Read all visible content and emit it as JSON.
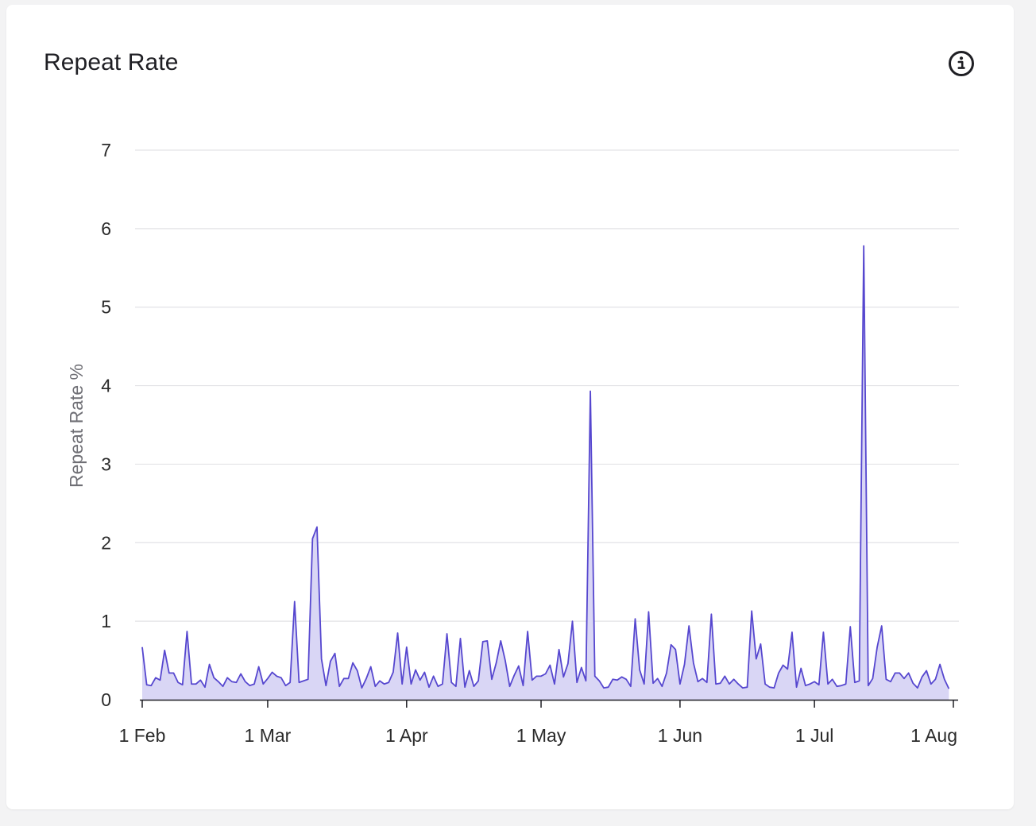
{
  "title": "Repeat Rate",
  "info_icon": "info-circle-icon",
  "chart_data": {
    "type": "area",
    "ylabel": "Repeat Rate %",
    "xlabel": "",
    "ylim": [
      0,
      7
    ],
    "y_ticks": [
      0,
      1,
      2,
      3,
      4,
      5,
      6,
      7
    ],
    "x_ticks": [
      {
        "date": "2023-02-01",
        "label": "1 Feb"
      },
      {
        "date": "2023-03-01",
        "label": "1 Mar"
      },
      {
        "date": "2023-04-01",
        "label": "1 Apr"
      },
      {
        "date": "2023-05-01",
        "label": "1 May"
      },
      {
        "date": "2023-06-01",
        "label": "1 Jun"
      },
      {
        "date": "2023-07-01",
        "label": "1 Jul"
      },
      {
        "date": "2023-08-01",
        "label": "1 Aug"
      }
    ],
    "x_start": "2023-02-01",
    "x_end": "2023-07-31",
    "grid": true,
    "line_color": "#5647cf",
    "fill_color": "#d9d6f5",
    "series": [
      {
        "values": [
          0.67,
          0.19,
          0.18,
          0.28,
          0.25,
          0.63,
          0.34,
          0.34,
          0.22,
          0.19,
          0.87,
          0.2,
          0.2,
          0.25,
          0.16,
          0.45,
          0.28,
          0.23,
          0.17,
          0.28,
          0.23,
          0.22,
          0.33,
          0.23,
          0.18,
          0.2,
          0.42,
          0.2,
          0.27,
          0.35,
          0.3,
          0.28,
          0.18,
          0.22,
          1.25,
          0.22,
          0.24,
          0.26,
          2.05,
          2.2,
          0.52,
          0.18,
          0.49,
          0.59,
          0.17,
          0.27,
          0.27,
          0.47,
          0.37,
          0.15,
          0.27,
          0.42,
          0.17,
          0.24,
          0.2,
          0.22,
          0.35,
          0.85,
          0.2,
          0.67,
          0.2,
          0.38,
          0.25,
          0.35,
          0.16,
          0.3,
          0.17,
          0.2,
          0.84,
          0.22,
          0.17,
          0.78,
          0.16,
          0.37,
          0.17,
          0.24,
          0.74,
          0.75,
          0.26,
          0.47,
          0.75,
          0.5,
          0.17,
          0.31,
          0.43,
          0.18,
          0.87,
          0.25,
          0.3,
          0.3,
          0.33,
          0.44,
          0.2,
          0.64,
          0.29,
          0.46,
          1.0,
          0.22,
          0.41,
          0.24,
          3.93,
          0.3,
          0.24,
          0.15,
          0.16,
          0.26,
          0.25,
          0.29,
          0.26,
          0.17,
          1.03,
          0.38,
          0.2,
          1.12,
          0.21,
          0.27,
          0.17,
          0.34,
          0.7,
          0.64,
          0.2,
          0.45,
          0.94,
          0.47,
          0.23,
          0.27,
          0.22,
          1.09,
          0.2,
          0.21,
          0.3,
          0.2,
          0.26,
          0.2,
          0.15,
          0.16,
          1.13,
          0.52,
          0.71,
          0.2,
          0.16,
          0.15,
          0.34,
          0.44,
          0.39,
          0.86,
          0.16,
          0.4,
          0.18,
          0.2,
          0.23,
          0.19,
          0.86,
          0.2,
          0.26,
          0.17,
          0.18,
          0.2,
          0.93,
          0.22,
          0.24,
          5.78,
          0.18,
          0.27,
          0.67,
          0.94,
          0.26,
          0.23,
          0.34,
          0.34,
          0.27,
          0.34,
          0.21,
          0.15,
          0.29,
          0.37,
          0.2,
          0.26,
          0.45,
          0.26,
          0.14
        ]
      }
    ]
  }
}
